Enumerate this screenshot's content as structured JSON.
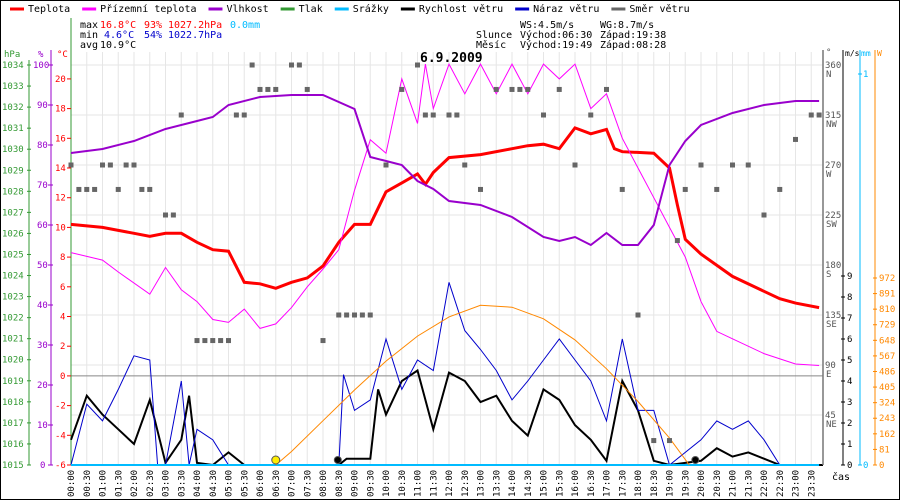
{
  "legend": [
    {
      "label": "Teplota",
      "color": "#ff0000"
    },
    {
      "label": "Přízemní teplota",
      "color": "#ff00ff"
    },
    {
      "label": "Vlhkost",
      "color": "#9900cc"
    },
    {
      "label": "Tlak",
      "color": "#339933"
    },
    {
      "label": "Srážky",
      "color": "#00bbff"
    },
    {
      "label": "Rychlost větru",
      "color": "#000000"
    },
    {
      "label": "Náraz větru",
      "color": "#0000cc"
    },
    {
      "label": "Směr větru",
      "color": "#666666"
    }
  ],
  "stats": {
    "max_label": "max",
    "max_temp": "16.8°C",
    "max_hum": "93%",
    "max_press": "1027.2hPa",
    "max_rain": "0.0mm",
    "min_label": "min",
    "min_temp": "4.6°C",
    "min_hum": "54%",
    "min_press": "1022.7hPa",
    "avg_label": "avg",
    "avg_temp": "10.9°C"
  },
  "info": {
    "ws": "WS:4.5m/s",
    "wg": "WG:8.7m/s",
    "sun_label": "Slunce",
    "sun_rise": "Východ:06:30",
    "sun_set": "Západ:19:38",
    "moon_label": "Měsíc",
    "moon_rise": "Východ:19:49",
    "moon_set": "Západ:08:28"
  },
  "chart_data": {
    "type": "line",
    "title": "6.9.2009",
    "xlabel": "čas",
    "x_ticks": [
      "00:00",
      "00:30",
      "01:00",
      "01:30",
      "02:00",
      "02:30",
      "03:00",
      "03:30",
      "04:00",
      "04:30",
      "05:00",
      "05:30",
      "06:00",
      "06:30",
      "07:00",
      "07:30",
      "08:00",
      "08:30",
      "09:00",
      "09:30",
      "10:00",
      "10:30",
      "11:00",
      "11:30",
      "12:00",
      "12:30",
      "13:00",
      "13:30",
      "14:00",
      "14:30",
      "15:00",
      "15:30",
      "16:00",
      "16:30",
      "17:00",
      "17:30",
      "18:00",
      "18:30",
      "19:00",
      "19:30",
      "20:00",
      "20:30",
      "21:00",
      "21:30",
      "22:00",
      "22:30",
      "23:00",
      "23:30"
    ],
    "axes": {
      "pressure": {
        "unit": "hPa",
        "range": [
          1015,
          1034
        ],
        "ticks": [
          1015,
          1016,
          1017,
          1018,
          1019,
          1020,
          1021,
          1022,
          1023,
          1024,
          1025,
          1026,
          1027,
          1028,
          1029,
          1030,
          1031,
          1032,
          1033,
          1034
        ]
      },
      "humidity": {
        "unit": "%",
        "range": [
          0,
          100
        ],
        "ticks": [
          0,
          10,
          20,
          30,
          40,
          50,
          60,
          70,
          80,
          90,
          100
        ]
      },
      "temperature": {
        "unit": "°C",
        "range": [
          -6,
          21
        ],
        "ticks": [
          -6,
          -4,
          -2,
          0,
          2,
          4,
          6,
          8,
          10,
          12,
          14,
          16,
          18,
          20
        ]
      },
      "direction": {
        "unit": "°",
        "range": [
          0,
          360
        ],
        "ticks": [
          {
            "v": 360,
            "l": "N"
          },
          {
            "v": 315,
            "l": "NW"
          },
          {
            "v": 270,
            "l": "W"
          },
          {
            "v": 225,
            "l": "SW"
          },
          {
            "v": 180,
            "l": "S"
          },
          {
            "v": 135,
            "l": "SE"
          },
          {
            "v": 90,
            "l": "E"
          },
          {
            "v": 45,
            "l": "NE"
          }
        ]
      },
      "wind": {
        "unit": "m/s",
        "range": [
          0,
          9
        ],
        "ticks": [
          0,
          1,
          2,
          3,
          4,
          5,
          6,
          7,
          8,
          9
        ]
      },
      "rain": {
        "unit": "mm",
        "range": [
          0,
          1
        ],
        "ticks": [
          0,
          1
        ]
      },
      "solar": {
        "unit": "W",
        "range": [
          0,
          972
        ],
        "ticks": [
          0,
          81,
          162,
          243,
          324,
          405,
          486,
          567,
          648,
          729,
          810,
          891,
          972
        ]
      }
    },
    "series": [
      {
        "name": "Teplota",
        "axis": "temperature",
        "color": "#ff0000",
        "x": [
          0,
          1,
          1.5,
          2,
          2.5,
          3,
          3.5,
          4,
          4.5,
          5,
          5.5,
          6,
          6.5,
          7,
          7.5,
          8,
          8.5,
          9,
          9.5,
          10,
          10.5,
          11,
          11.25,
          11.5,
          12,
          13,
          14,
          14.5,
          15,
          15.5,
          16,
          16.5,
          17,
          17.25,
          17.5,
          18.5,
          19,
          19.25,
          19.5,
          20,
          21,
          22,
          22.5,
          23,
          23.75
        ],
        "y": [
          10.2,
          10,
          9.8,
          9.6,
          9.4,
          9.6,
          9.6,
          9,
          8.5,
          8.4,
          6.3,
          6.2,
          5.9,
          6.3,
          6.6,
          7.4,
          9,
          10.2,
          10.2,
          12.4,
          13,
          13.6,
          12.9,
          13.7,
          14.7,
          14.9,
          15.3,
          15.5,
          15.6,
          15.3,
          16.7,
          16.3,
          16.6,
          15.3,
          15.1,
          15,
          14,
          11.5,
          9.2,
          8.2,
          6.7,
          5.7,
          5.2,
          4.9,
          4.6
        ]
      },
      {
        "name": "Přízemní teplota",
        "axis": "temperature",
        "color": "#ff00ff",
        "x": [
          0,
          1,
          1.5,
          2.5,
          3,
          3.5,
          4,
          4.5,
          5,
          5.5,
          6,
          6.5,
          7,
          7.5,
          8,
          8.5,
          9,
          9.5,
          10,
          10.5,
          11,
          11.25,
          11.5,
          12,
          12.5,
          13,
          13.5,
          14,
          14.5,
          15,
          15.5,
          16,
          16.5,
          17,
          17.5,
          18,
          18.5,
          19,
          19.5,
          20,
          20.5,
          21,
          22,
          23,
          23.75
        ],
        "y": [
          8.3,
          7.8,
          7,
          5.5,
          7.3,
          5.8,
          5,
          3.8,
          3.6,
          4.5,
          3.2,
          3.5,
          4.6,
          6,
          7.2,
          8.5,
          12.5,
          15.9,
          15,
          20,
          17,
          21,
          18,
          21,
          19,
          21,
          19,
          21,
          19,
          21,
          20,
          21,
          18,
          19,
          16,
          14,
          12,
          10,
          8,
          5,
          3,
          2.5,
          1.5,
          0.8,
          0.7
        ]
      },
      {
        "name": "Vlhkost",
        "axis": "humidity",
        "color": "#9900cc",
        "x": [
          0,
          1,
          2,
          3,
          4,
          4.5,
          5,
          6,
          7,
          8,
          9,
          9.5,
          10.5,
          11,
          11.5,
          12,
          13,
          14,
          15,
          15.5,
          16,
          16.5,
          17,
          17.5,
          18,
          18.5,
          19,
          19.5,
          20,
          21,
          22,
          23,
          23.75
        ],
        "y": [
          78,
          79,
          81,
          84,
          86,
          87,
          90,
          92,
          92.5,
          92.5,
          89,
          77,
          75,
          71,
          69,
          66,
          65,
          62,
          57,
          56,
          57,
          55,
          58,
          55,
          55,
          60,
          75,
          81,
          85,
          88,
          90,
          91,
          91
        ]
      },
      {
        "name": "Rychlost větru",
        "axis": "wind",
        "color": "#000000",
        "x": [
          0,
          0.5,
          1,
          1.5,
          2,
          2.5,
          3,
          3.5,
          3.75,
          4,
          4.5,
          5,
          5.5,
          6,
          8.5,
          8.75,
          9.5,
          9.75,
          10,
          10.5,
          11,
          11.5,
          12,
          12.5,
          13,
          13.5,
          14,
          14.5,
          15,
          15.5,
          16,
          16.5,
          17,
          17.5,
          18,
          18.5,
          19,
          20,
          20.5,
          21,
          21.5,
          22,
          22.5,
          23.75
        ],
        "y": [
          1.2,
          3.3,
          2.4,
          1.7,
          1,
          3.1,
          0.1,
          1.2,
          3.3,
          0.1,
          0,
          0.6,
          0,
          0,
          0,
          0.3,
          0.3,
          3.6,
          2.4,
          4,
          4.5,
          1.7,
          4.4,
          4,
          3,
          3.3,
          2.1,
          1.4,
          3.6,
          3.1,
          1.9,
          1.2,
          0.2,
          4,
          2.6,
          0.2,
          0,
          0.2,
          0.8,
          0.4,
          0.6,
          0.3,
          0,
          0
        ]
      },
      {
        "name": "Náraz větru",
        "axis": "wind",
        "color": "#0000cc",
        "x": [
          0,
          0.5,
          1,
          1.5,
          2,
          2.5,
          2.75,
          3,
          3.5,
          3.75,
          4,
          4.5,
          5,
          8.5,
          8.65,
          9,
          9.5,
          10,
          10.5,
          11,
          11.5,
          12,
          12.5,
          13,
          13.5,
          14,
          14.5,
          15,
          15.5,
          16,
          16.5,
          17,
          17.5,
          18,
          18.5,
          19,
          20,
          20.5,
          21,
          21.5,
          22,
          22.5,
          23.75
        ],
        "y": [
          0,
          2.9,
          2.1,
          3.6,
          5.2,
          5,
          0,
          0,
          4,
          0,
          1.7,
          1.2,
          0,
          0,
          4.3,
          2.6,
          3.1,
          6,
          3.6,
          5,
          4.5,
          8.7,
          6.4,
          5.5,
          4.5,
          3.1,
          4,
          5,
          6,
          5,
          4,
          2.1,
          6,
          2.6,
          2.6,
          0,
          1.2,
          2.1,
          1.7,
          2.1,
          1.2,
          0,
          0
        ]
      },
      {
        "name": "Srážky",
        "axis": "rain",
        "color": "#00bbff",
        "x": [
          0,
          23.75
        ],
        "y": [
          0,
          0
        ]
      },
      {
        "name": "Solar",
        "axis": "solar",
        "color": "#ff8800",
        "x": [
          6.5,
          7,
          8,
          9,
          10,
          11,
          12,
          13,
          14,
          15,
          16,
          17,
          18,
          19,
          19.63
        ],
        "y": [
          0,
          70,
          230,
          390,
          540,
          670,
          770,
          830,
          820,
          760,
          650,
          500,
          330,
          140,
          0
        ]
      },
      {
        "name": "Směr větru",
        "axis": "direction",
        "type": "scatter",
        "color": "#666666",
        "x": [
          0,
          0.25,
          0.5,
          0.75,
          1,
          1.25,
          1.5,
          1.75,
          2,
          2.25,
          2.5,
          3,
          3.25,
          3.5,
          4,
          4.25,
          4.5,
          4.75,
          5,
          5.25,
          5.5,
          5.75,
          6,
          6.25,
          6.5,
          7,
          7.25,
          7.5,
          8,
          8.5,
          8.75,
          9,
          9.25,
          9.5,
          10,
          10.5,
          11,
          11.25,
          11.5,
          12,
          12.25,
          12.5,
          13,
          13.5,
          14,
          14.25,
          14.5,
          15,
          15.5,
          16,
          16.5,
          17,
          17.5,
          18,
          18.5,
          19,
          19.25,
          19.5,
          20,
          20.5,
          21,
          21.5,
          22,
          22.5,
          23,
          23.5,
          23.75
        ],
        "y": [
          270,
          248,
          248,
          248,
          270,
          270,
          248,
          270,
          270,
          248,
          248,
          225,
          225,
          315,
          112,
          112,
          112,
          112,
          112,
          315,
          315,
          360,
          338,
          338,
          338,
          360,
          360,
          338,
          112,
          135,
          135,
          135,
          135,
          135,
          270,
          338,
          360,
          315,
          315,
          315,
          315,
          270,
          248,
          338,
          338,
          338,
          338,
          315,
          338,
          270,
          315,
          338,
          248,
          135,
          22,
          22,
          202,
          248,
          270,
          248,
          270,
          270,
          225,
          248,
          293,
          315,
          315
        ]
      }
    ],
    "markers": [
      {
        "name": "sunrise",
        "x": 6.5,
        "color": "#ffee00"
      },
      {
        "name": "moonset",
        "x": 8.47,
        "color": "#000000"
      },
      {
        "name": "moonrise",
        "x": 19.82,
        "color": "#000000"
      }
    ]
  }
}
